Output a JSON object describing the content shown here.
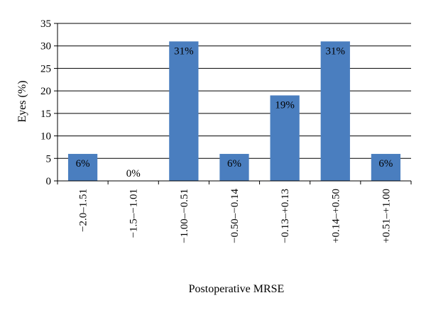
{
  "chart_data": {
    "type": "bar",
    "categories": [
      "−2.0–1.51",
      "−1.5–−1.01",
      "−1.00–−0.51",
      "−0.50–−0.14",
      "−0.13–+0.13",
      "+0.14–+0.50",
      "+0.51–+1.00"
    ],
    "values": [
      6,
      0,
      31,
      6,
      19,
      31,
      6
    ],
    "data_labels": [
      "6%",
      "0%",
      "31%",
      "6%",
      "19%",
      "31%",
      "6%"
    ],
    "ylabel": "Eyes (%)",
    "xlabel": "Postoperative MRSE",
    "ylim": [
      0,
      35
    ],
    "yticks": [
      0,
      5,
      10,
      15,
      20,
      25,
      30,
      35
    ],
    "grid": true,
    "bar_color": "#4a7ebf"
  }
}
